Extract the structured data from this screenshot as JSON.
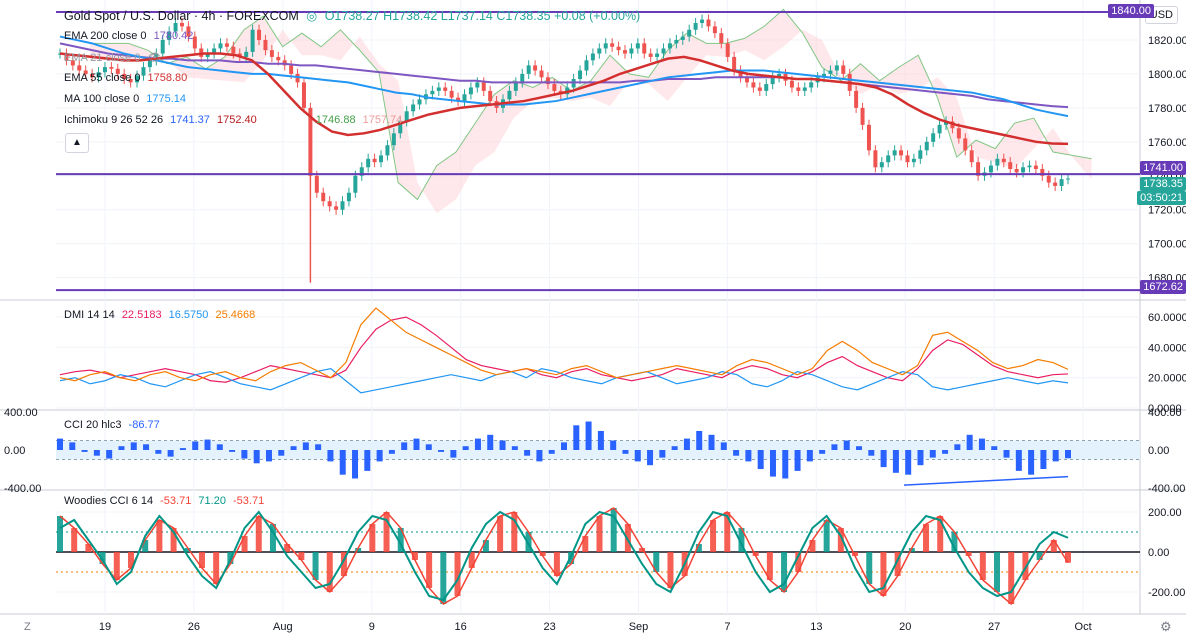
{
  "header": {
    "symbol": "Gold Spot / U.S. Dollar · 4h · FOREXCOM",
    "ohlc": "O1738.27 H1738.42 L1737.14 C1738.35 +0.08 (+0.00%)"
  },
  "legend": {
    "ema200": {
      "label": "EMA 200 close 0",
      "value": "1780.42",
      "color": "#7e57c2"
    },
    "ema21": {
      "label": "EMA 21 close 0",
      "value": ""
    },
    "ema55": {
      "label": "EMA 55 close 0",
      "value": "1758.80",
      "color": "#d32f2f"
    },
    "ma100": {
      "label": "MA 100 close 0",
      "value": "1775.14",
      "color": "#2196f3"
    },
    "ichimoku": {
      "label": "Ichimoku 9 26 52 26",
      "v1": "1741.37",
      "v2": "1752.40",
      "v3": "1746.88",
      "v4": "1757.74",
      "c1": "#2962ff",
      "c2": "#b71c1c",
      "c3": "#43a047",
      "c4": "#ef9a9a"
    },
    "dmi": {
      "label": "DMI 14 14",
      "v1": "22.5183",
      "v2": "16.5750",
      "v3": "25.4668",
      "c1": "#e91e63",
      "c2": "#2196f3",
      "c3": "#f57c00"
    },
    "cci": {
      "label": "CCI 20 hlc3",
      "value": "-86.77",
      "color": "#2962ff"
    },
    "woodies": {
      "label": "Woodies CCI 6 14",
      "v1": "-53.71",
      "v2": "71.20",
      "v3": "-53.71",
      "c1": "#f44336",
      "c2": "#009688",
      "c3": "#f44336"
    }
  },
  "currency_button": "USD",
  "price_tags": {
    "resistance": "1741.00",
    "last": "1738.35",
    "countdown": "03:50:21",
    "support": "1672.62",
    "top": "1840.00"
  },
  "corner_left": "Z",
  "corner_right": "⚙",
  "colors": {
    "up": "#26a69a",
    "down": "#ef5350",
    "hline": "#673ab7",
    "grid": "#f0f3fa"
  },
  "chart_data": [
    {
      "type": "candlestick",
      "title": "Gold Spot / U.S. Dollar · 4h · FOREXCOM",
      "x_ticks": [
        "19",
        "26",
        "Aug",
        "9",
        "16",
        "23",
        "Sep",
        "7",
        "13",
        "20",
        "27",
        "Oct"
      ],
      "y_ticks": [
        "1820.00",
        "1800.00",
        "1780.00",
        "1760.00",
        "1740.00",
        "1720.00",
        "1700.00",
        "1680.00"
      ],
      "ylim": [
        1668,
        1840
      ],
      "horizontal_levels": [
        1840.0,
        1741.0,
        1672.62
      ],
      "close_series": [
        1812,
        1808,
        1805,
        1802,
        1800,
        1798,
        1801,
        1804,
        1803,
        1800,
        1797,
        1795,
        1799,
        1804,
        1808,
        1812,
        1820,
        1825,
        1830,
        1828,
        1822,
        1815,
        1810,
        1812,
        1815,
        1818,
        1816,
        1812,
        1810,
        1813,
        1826,
        1820,
        1814,
        1810,
        1808,
        1805,
        1800,
        1795,
        1780,
        1740,
        1730,
        1725,
        1722,
        1720,
        1725,
        1730,
        1740,
        1745,
        1750,
        1748,
        1752,
        1758,
        1765,
        1772,
        1778,
        1782,
        1785,
        1788,
        1790,
        1792,
        1790,
        1786,
        1784,
        1788,
        1792,
        1795,
        1790,
        1784,
        1780,
        1785,
        1790,
        1795,
        1800,
        1805,
        1802,
        1798,
        1794,
        1790,
        1788,
        1792,
        1797,
        1802,
        1808,
        1812,
        1815,
        1818,
        1816,
        1814,
        1812,
        1815,
        1818,
        1812,
        1810,
        1812,
        1815,
        1818,
        1820,
        1822,
        1826,
        1830,
        1832,
        1828,
        1824,
        1818,
        1810,
        1802,
        1798,
        1795,
        1792,
        1790,
        1794,
        1798,
        1800,
        1796,
        1792,
        1790,
        1792,
        1795,
        1798,
        1800,
        1802,
        1805,
        1800,
        1790,
        1780,
        1770,
        1755,
        1745,
        1748,
        1752,
        1755,
        1752,
        1748,
        1750,
        1755,
        1760,
        1765,
        1770,
        1772,
        1768,
        1762,
        1755,
        1748,
        1740,
        1742,
        1746,
        1750,
        1748,
        1744,
        1742,
        1745,
        1746,
        1744,
        1740,
        1736,
        1734,
        1738,
        1738.35
      ],
      "ema200_series": [
        1818,
        1816,
        1814,
        1812,
        1811,
        1810,
        1809,
        1809,
        1808,
        1808,
        1808,
        1807,
        1807,
        1806,
        1806,
        1805,
        1805,
        1804,
        1803,
        1802,
        1801,
        1800,
        1799,
        1798,
        1797,
        1796,
        1796,
        1795,
        1795,
        1795,
        1795,
        1795,
        1795,
        1795,
        1795,
        1795,
        1796,
        1796,
        1797,
        1797,
        1797,
        1798,
        1798,
        1798,
        1798,
        1798,
        1797,
        1797,
        1796,
        1795,
        1794,
        1793,
        1792,
        1791,
        1790,
        1789,
        1788,
        1787,
        1785,
        1784,
        1783,
        1782,
        1781,
        1780.42
      ],
      "ma100_series": [
        1822,
        1820,
        1818,
        1815,
        1812,
        1810,
        1808,
        1806,
        1804,
        1803,
        1802,
        1801,
        1800,
        1800,
        1799,
        1798,
        1797,
        1796,
        1795,
        1793,
        1791,
        1789,
        1788,
        1786,
        1785,
        1784,
        1783,
        1782,
        1782,
        1782,
        1783,
        1784,
        1786,
        1788,
        1790,
        1792,
        1794,
        1796,
        1798,
        1799,
        1800,
        1801,
        1802,
        1802,
        1802,
        1801,
        1800,
        1799,
        1798,
        1797,
        1796,
        1795,
        1794,
        1793,
        1792,
        1791,
        1790,
        1789,
        1787,
        1785,
        1782,
        1779,
        1777,
        1775.14
      ],
      "ema55_series": [
        1812,
        1811,
        1810,
        1809,
        1808,
        1808,
        1809,
        1810,
        1811,
        1812,
        1812,
        1811,
        1808,
        1800,
        1790,
        1780,
        1772,
        1766,
        1764,
        1765,
        1767,
        1770,
        1773,
        1776,
        1778,
        1780,
        1781,
        1782,
        1783,
        1784,
        1786,
        1788,
        1790,
        1793,
        1796,
        1800,
        1803,
        1806,
        1809,
        1810,
        1808,
        1805,
        1802,
        1800,
        1799,
        1798,
        1797,
        1797,
        1796,
        1795,
        1794,
        1792,
        1788,
        1782,
        1777,
        1773,
        1770,
        1768,
        1766,
        1764,
        1762,
        1760,
        1759,
        1758.8
      ]
    },
    {
      "type": "line",
      "title": "DMI 14 14",
      "y_ticks": [
        "60.0000",
        "40.0000",
        "20.0000",
        "0.0000"
      ],
      "ylim": [
        0,
        70
      ],
      "series": [
        {
          "name": "+DI",
          "color": "#e91e63",
          "values": [
            22,
            24,
            25,
            23,
            20,
            22,
            24,
            26,
            24,
            22,
            18,
            17,
            20,
            24,
            28,
            26,
            24,
            22,
            20,
            25,
            40,
            52,
            58,
            60,
            55,
            48,
            40,
            32,
            28,
            26,
            24,
            26,
            22,
            20,
            24,
            26,
            22,
            20,
            18,
            20,
            22,
            26,
            24,
            22,
            20,
            25,
            28,
            26,
            22,
            20,
            24,
            30,
            34,
            28,
            24,
            20,
            18,
            26,
            38,
            45,
            42,
            35,
            28,
            24,
            22,
            20,
            22,
            22.5
          ]
        },
        {
          "name": "-DI",
          "color": "#2196f3",
          "values": [
            18,
            20,
            16,
            18,
            22,
            20,
            16,
            14,
            18,
            22,
            24,
            20,
            16,
            14,
            12,
            16,
            20,
            24,
            26,
            18,
            10,
            12,
            14,
            16,
            18,
            20,
            22,
            20,
            18,
            22,
            24,
            20,
            26,
            24,
            20,
            18,
            16,
            20,
            22,
            24,
            20,
            16,
            18,
            20,
            24,
            22,
            16,
            14,
            18,
            24,
            22,
            18,
            14,
            12,
            16,
            20,
            24,
            22,
            14,
            12,
            14,
            16,
            18,
            20,
            18,
            16,
            18,
            16.6
          ]
        },
        {
          "name": "ADX",
          "color": "#f57c00",
          "values": [
            20,
            18,
            22,
            24,
            20,
            18,
            22,
            24,
            20,
            18,
            22,
            24,
            20,
            18,
            24,
            28,
            30,
            25,
            20,
            30,
            55,
            66,
            58,
            50,
            45,
            40,
            35,
            30,
            25,
            22,
            24,
            26,
            24,
            22,
            26,
            28,
            24,
            20,
            22,
            24,
            26,
            28,
            26,
            24,
            22,
            28,
            32,
            30,
            26,
            22,
            26,
            38,
            44,
            38,
            30,
            26,
            22,
            28,
            48,
            50,
            44,
            38,
            30,
            26,
            28,
            32,
            30,
            25.5
          ]
        }
      ]
    },
    {
      "type": "area",
      "title": "CCI 20 hlc3",
      "y_ticks": [
        "400.00",
        "0.00",
        "-400.00"
      ],
      "ylim": [
        -400,
        400
      ],
      "band": [
        -100,
        100
      ],
      "series": [
        {
          "name": "CCI",
          "color": "#2962ff",
          "values": [
            120,
            80,
            -20,
            -60,
            -90,
            40,
            80,
            60,
            -40,
            -70,
            20,
            90,
            110,
            60,
            -20,
            -90,
            -140,
            -120,
            -60,
            40,
            80,
            60,
            -120,
            -260,
            -300,
            -220,
            -120,
            -40,
            80,
            120,
            60,
            -20,
            -80,
            40,
            120,
            160,
            100,
            40,
            -60,
            -120,
            -40,
            80,
            260,
            300,
            200,
            100,
            -40,
            -120,
            -160,
            -80,
            40,
            120,
            200,
            160,
            80,
            -60,
            -120,
            -200,
            -280,
            -300,
            -220,
            -120,
            -40,
            60,
            100,
            40,
            -60,
            -180,
            -240,
            -260,
            -160,
            -80,
            -40,
            60,
            160,
            120,
            40,
            -80,
            -220,
            -260,
            -200,
            -120,
            -86.77
          ]
        }
      ]
    },
    {
      "type": "bar",
      "title": "Woodies CCI 6 14",
      "y_ticks": [
        "200.00",
        "0.00",
        "-200.00"
      ],
      "ylim": [
        -300,
        300
      ],
      "reference_levels": [
        100,
        0,
        -100
      ],
      "series": [
        {
          "name": "CCI 14",
          "color": "#f44336",
          "values": [
            180,
            120,
            40,
            -60,
            -140,
            -80,
            60,
            160,
            120,
            20,
            -80,
            -160,
            -60,
            80,
            180,
            140,
            40,
            -40,
            -140,
            -200,
            -120,
            20,
            140,
            200,
            120,
            -40,
            -180,
            -260,
            -220,
            -80,
            60,
            180,
            200,
            100,
            -20,
            -120,
            -60,
            80,
            180,
            220,
            140,
            20,
            -100,
            -180,
            -120,
            40,
            160,
            200,
            120,
            -20,
            -140,
            -200,
            -100,
            60,
            160,
            120,
            -20,
            -160,
            -220,
            -120,
            20,
            140,
            180,
            100,
            -20,
            -140,
            -200,
            -260,
            -140,
            -40,
            60,
            -53.71
          ]
        },
        {
          "name": "CCI 6",
          "color": "#009688",
          "values": [
            120,
            160,
            60,
            -40,
            -160,
            -100,
            80,
            180,
            100,
            -20,
            -120,
            -180,
            -40,
            120,
            200,
            100,
            -20,
            -100,
            -180,
            -160,
            -40,
            100,
            180,
            160,
            40,
            -100,
            -220,
            -240,
            -140,
            20,
            140,
            200,
            160,
            40,
            -80,
            -160,
            -20,
            140,
            200,
            180,
            60,
            -60,
            -160,
            -200,
            -60,
            100,
            200,
            180,
            40,
            -100,
            -200,
            -160,
            -20,
            120,
            180,
            80,
            -80,
            -200,
            -180,
            -40,
            100,
            180,
            160,
            20,
            -100,
            -180,
            -220,
            -200,
            -80,
            40,
            100,
            71.2
          ]
        }
      ]
    }
  ]
}
